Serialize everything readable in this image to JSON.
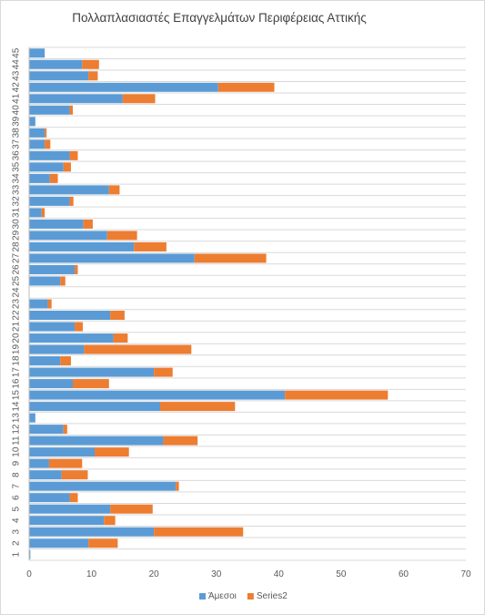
{
  "chart_data": {
    "type": "bar",
    "orientation": "horizontal",
    "stacked": true,
    "title": "Πολλαπλασιαστές Επαγγελμάτων Περιφέρειας Αττικής",
    "xlabel": "",
    "ylabel": "",
    "xlim": [
      0,
      70
    ],
    "x_ticks": [
      0,
      10,
      20,
      30,
      40,
      50,
      60,
      70
    ],
    "grid": "horizontal",
    "legend_position": "bottom",
    "categories": [
      "1",
      "2",
      "3",
      "4",
      "5",
      "6",
      "7",
      "8",
      "9",
      "10",
      "11",
      "12",
      "13",
      "14",
      "15",
      "16",
      "17",
      "18",
      "19",
      "20",
      "21",
      "22",
      "23",
      "24",
      "25",
      "26",
      "27",
      "28",
      "29",
      "30",
      "31",
      "32",
      "33",
      "34",
      "35",
      "36",
      "37",
      "38",
      "39",
      "40",
      "41",
      "42",
      "43",
      "44",
      "45"
    ],
    "series": [
      {
        "name": "Άμεσοι",
        "color": "#5b9bd5",
        "values": [
          0.2,
          9.5,
          20.0,
          12.0,
          13.0,
          6.5,
          23.5,
          5.2,
          3.2,
          10.5,
          21.5,
          5.5,
          1.0,
          21.0,
          41.0,
          7.0,
          20.0,
          5.0,
          8.8,
          13.5,
          7.3,
          13.0,
          3.0,
          0,
          5.0,
          7.3,
          26.5,
          16.8,
          12.5,
          8.7,
          2.0,
          6.5,
          12.8,
          3.3,
          5.5,
          6.5,
          2.5,
          2.5,
          1.0,
          6.5,
          15.0,
          30.3,
          9.5,
          8.5,
          2.5
        ],
        "value_estimates_note": ""
      },
      {
        "name": "Series2",
        "color": "#ed7d31",
        "values": [
          0,
          4.7,
          14.3,
          1.8,
          6.8,
          1.3,
          0.5,
          4.2,
          5.3,
          5.5,
          5.5,
          0.6,
          0,
          12.0,
          16.5,
          5.8,
          3.0,
          1.7,
          17.2,
          2.3,
          1.3,
          2.3,
          0.6,
          0,
          0.8,
          0.5,
          11.5,
          5.2,
          4.8,
          1.5,
          0.5,
          0.6,
          1.7,
          1.3,
          1.2,
          1.3,
          0.9,
          0.3,
          0,
          0.5,
          5.2,
          9.0,
          1.5,
          2.7,
          0
        ]
      }
    ]
  }
}
